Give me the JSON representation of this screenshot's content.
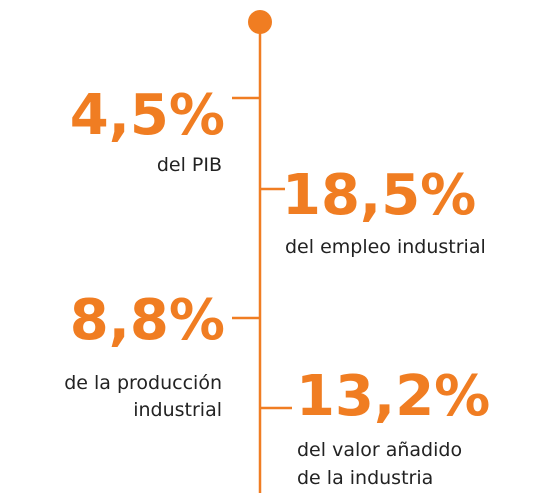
{
  "items": [
    {
      "value": "4,5%",
      "lines": [
        "del PIB"
      ]
    },
    {
      "value": "18,5%",
      "lines": [
        "del empleo industrial"
      ]
    },
    {
      "value": "8,8%",
      "lines": [
        "de la producción",
        "industrial"
      ]
    },
    {
      "value": "13,2%",
      "lines": [
        "del valor añadido",
        "de la industria"
      ]
    }
  ]
}
